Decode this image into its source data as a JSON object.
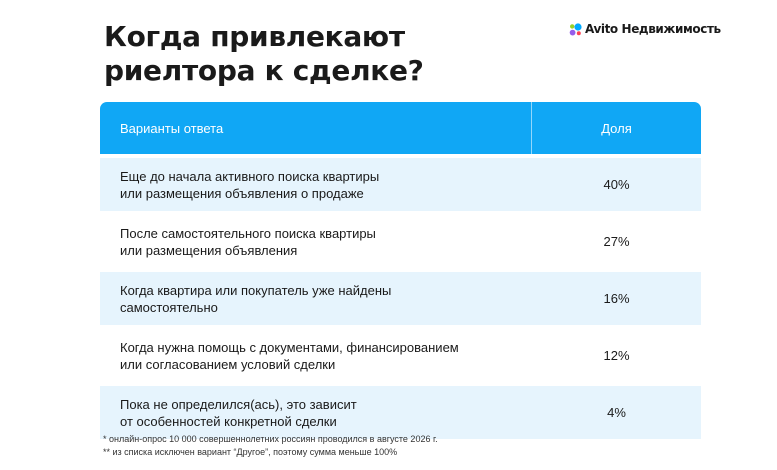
{
  "title": "Когда привлекают риелтора к сделке?",
  "brand": {
    "name": "Avito Недвижимость",
    "logo_icon": "avito-dots-icon",
    "colors": [
      "#00aaff",
      "#97cf26",
      "#ff4053",
      "#965eeb"
    ]
  },
  "table": {
    "header": {
      "answer": "Варианты ответа",
      "share": "Доля"
    },
    "accent_color": "#10a7f5",
    "rows": [
      {
        "line1": "Еще до начала активного поиска квартиры",
        "line2": "или размещения объявления о продаже",
        "share": "40%"
      },
      {
        "line1": "После самостоятельного поиска квартиры",
        "line2": "или размещения объявления",
        "share": "27%"
      },
      {
        "line1": "Когда квартира или покупатель уже найдены",
        "line2": "самостоятельно",
        "share": "16%"
      },
      {
        "line1": "Когда нужна помощь с документами, финансированием",
        "line2": "или согласованием условий сделки",
        "share": "12%"
      },
      {
        "line1": "Пока не определился(ась), это зависит",
        "line2": "от особенностей конкретной сделки",
        "share": "4%"
      }
    ]
  },
  "footnotes": [
    "* онлайн-опрос 10 000 совершеннолетних россиян проводился в августе 2026 г.",
    "** из списка исключен вариант “Другое”, поэтому сумма меньше 100%"
  ]
}
